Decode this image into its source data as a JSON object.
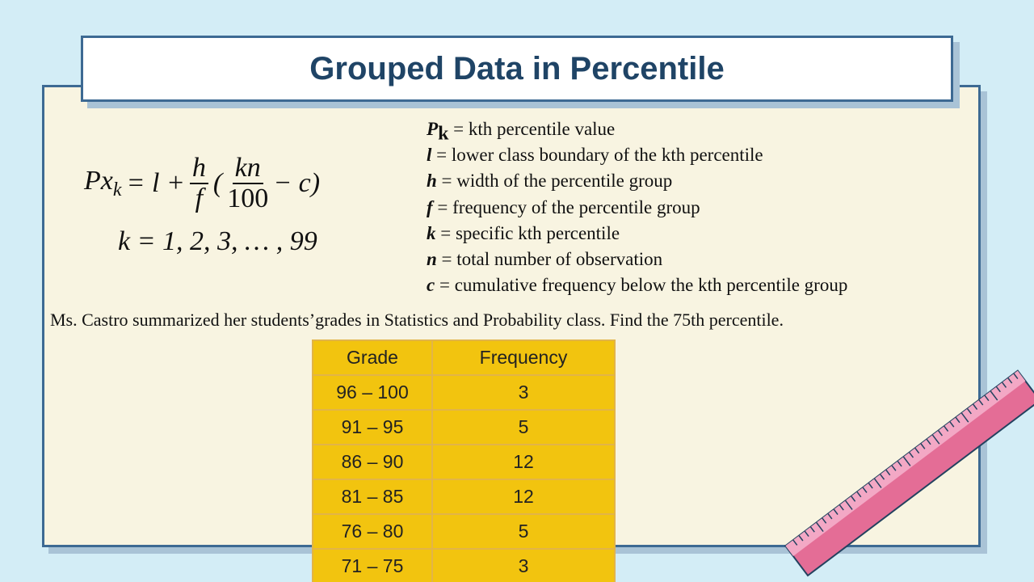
{
  "header": {
    "title": "Grouped Data in Percentile"
  },
  "formula": {
    "lhs": "Px",
    "lhs_subscript": "k",
    "middle": "= l +",
    "fraction": {
      "numerator": "h",
      "denominator": "f"
    },
    "open": "(",
    "inner_fraction": {
      "numerator": "kn",
      "denominator": "100"
    },
    "close": "− c)",
    "range": "k = 1, 2, 3, … , 99"
  },
  "definitions": [
    {
      "symbol": "P",
      "subscript": "k",
      "text": "= kth percentile value"
    },
    {
      "symbol": "l",
      "text": "= lower class boundary of the kth percentile"
    },
    {
      "symbol": "h",
      "text": "= width of the percentile group"
    },
    {
      "symbol": "f",
      "text": "= frequency of the percentile group"
    },
    {
      "symbol": "k",
      "text": "= specific kth percentile"
    },
    {
      "symbol": "n",
      "text": "= total number of observation"
    },
    {
      "symbol": "c",
      "text": "= cumulative frequency below the kth percentile group"
    }
  ],
  "problem": "Ms. Castro summarized her students’grades in Statistics and Probability class. Find the 75th percentile.",
  "table": {
    "headers": [
      "Grade",
      "Frequency"
    ],
    "rows": [
      [
        "96 – 100",
        3
      ],
      [
        "91 – 95",
        5
      ],
      [
        "86 – 90",
        12
      ],
      [
        "81 – 85",
        12
      ],
      [
        "76 – 80",
        5
      ],
      [
        "71 – 75",
        3
      ]
    ]
  }
}
